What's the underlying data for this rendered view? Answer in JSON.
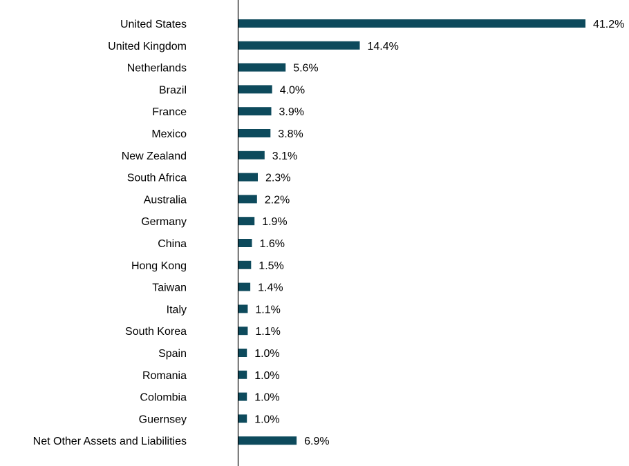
{
  "chart_data": {
    "type": "bar",
    "orientation": "horizontal",
    "categories": [
      "United States",
      "United Kingdom",
      "Netherlands",
      "Brazil",
      "France",
      "Mexico",
      "New Zealand",
      "South Africa",
      "Australia",
      "Germany",
      "China",
      "Hong Kong",
      "Taiwan",
      "Italy",
      "South Korea",
      "Spain",
      "Romania",
      "Colombia",
      "Guernsey",
      "Net Other Assets and Liabilities"
    ],
    "values": [
      41.2,
      14.4,
      5.6,
      4.0,
      3.9,
      3.8,
      3.1,
      2.3,
      2.2,
      1.9,
      1.6,
      1.5,
      1.4,
      1.1,
      1.1,
      1.0,
      1.0,
      1.0,
      1.0,
      6.9
    ],
    "value_labels": [
      "41.2%",
      "14.4%",
      "5.6%",
      "4.0%",
      "3.9%",
      "3.8%",
      "3.1%",
      "2.3%",
      "2.2%",
      "1.9%",
      "1.6%",
      "1.5%",
      "1.4%",
      "1.1%",
      "1.1%",
      "1.0%",
      "1.0%",
      "1.0%",
      "1.0%",
      "6.9%"
    ],
    "unit": "%",
    "title": "",
    "xlabel": "",
    "ylabel": "",
    "xlim": [
      0,
      41.2
    ],
    "grid": false,
    "legend": "none",
    "bar_color": "#0d4a5c"
  }
}
